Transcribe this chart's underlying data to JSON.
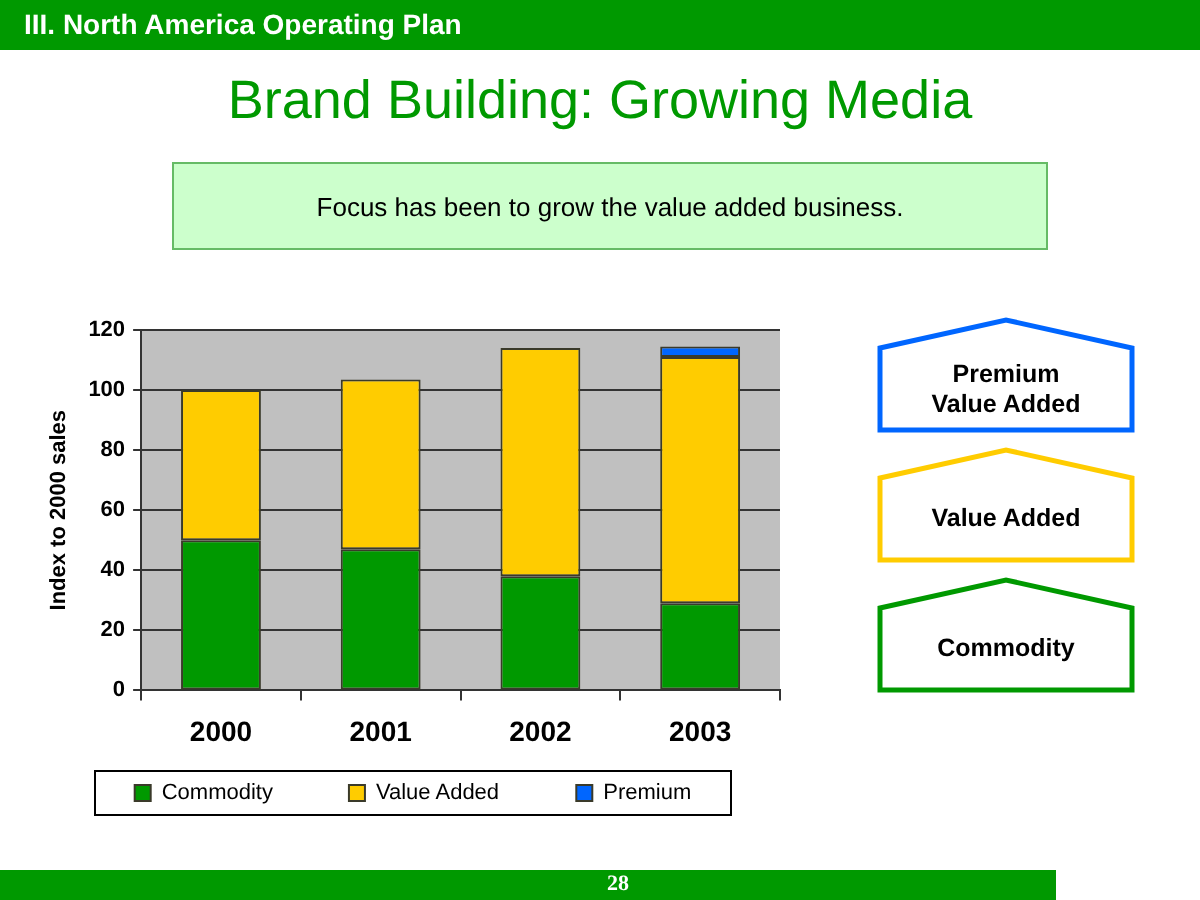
{
  "chart_data": {
    "type": "bar",
    "title": "Brand Building: Growing Media",
    "ylabel": "Index to 2000 sales",
    "categories": [
      "2000",
      "2001",
      "2002",
      "2003"
    ],
    "series": [
      {
        "name": "Commodity",
        "color": "#009900",
        "values": [
          50,
          47,
          38,
          29
        ]
      },
      {
        "name": "Value Added",
        "color": "#ffcc00",
        "values": [
          50,
          56.5,
          76,
          82
        ]
      },
      {
        "name": "Premium",
        "color": "#0066ff",
        "values": [
          null,
          null,
          null,
          3.5
        ]
      }
    ],
    "stacked": true,
    "ylim": [
      0,
      120
    ],
    "yticks": [
      0,
      20,
      40,
      60,
      80,
      100,
      120
    ],
    "grid": "y",
    "legend": "bottom",
    "annotations": [
      "III. North America Operating Plan",
      "Focus has been to grow the value added business.",
      "Premium\nValue Added",
      "Value Added",
      "Commodity",
      "28"
    ]
  }
}
